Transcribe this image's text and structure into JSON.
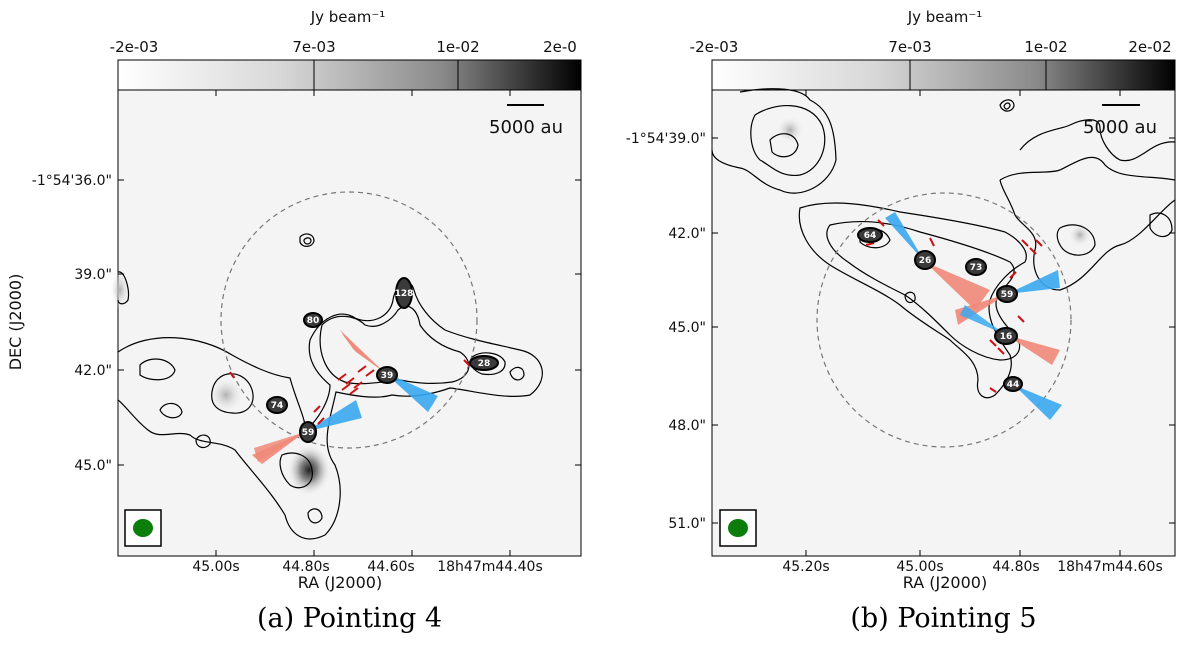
{
  "panels": [
    {
      "caption": "(a) Pointing 4",
      "colorbar": {
        "label": "Jy beam⁻¹",
        "ticks": [
          "-2e-03",
          "7e-03",
          "1e-02",
          "2e-0"
        ]
      },
      "scalebar": "5000 au",
      "dec_ticks": [
        "-1°54'36.0\"",
        "39.0\"",
        "42.0\"",
        "45.0\""
      ],
      "ra_ticks": [
        "45.00s",
        "44.80s",
        "44.60s",
        "18h47m44.40s"
      ],
      "xlabel": "RA (J2000)",
      "ylabel": "DEC (J2000)",
      "sources": [
        "74",
        "59",
        "39",
        "80",
        "128",
        "28"
      ],
      "beam_color": "#0a7d0a",
      "outflow_red": "#f08878",
      "outflow_blue": "#3aa8f0"
    },
    {
      "caption": "(b) Pointing 5",
      "colorbar": {
        "label": "Jy beam⁻¹",
        "ticks": [
          "-2e-03",
          "7e-03",
          "1e-02",
          "2e-02"
        ]
      },
      "scalebar": "5000 au",
      "dec_ticks": [
        "-1°54'39.0\"",
        "42.0\"",
        "45.0\"",
        "48.0\"",
        "51.0\""
      ],
      "ra_ticks": [
        "45.20s",
        "45.00s",
        "44.80s",
        "18h47m44.60s"
      ],
      "xlabel": "RA (J2000)",
      "ylabel": "",
      "sources": [
        "64",
        "26",
        "73",
        "59",
        "16",
        "44"
      ],
      "beam_color": "#0a7d0a",
      "outflow_red": "#f08878",
      "outflow_blue": "#3aa8f0"
    }
  ]
}
